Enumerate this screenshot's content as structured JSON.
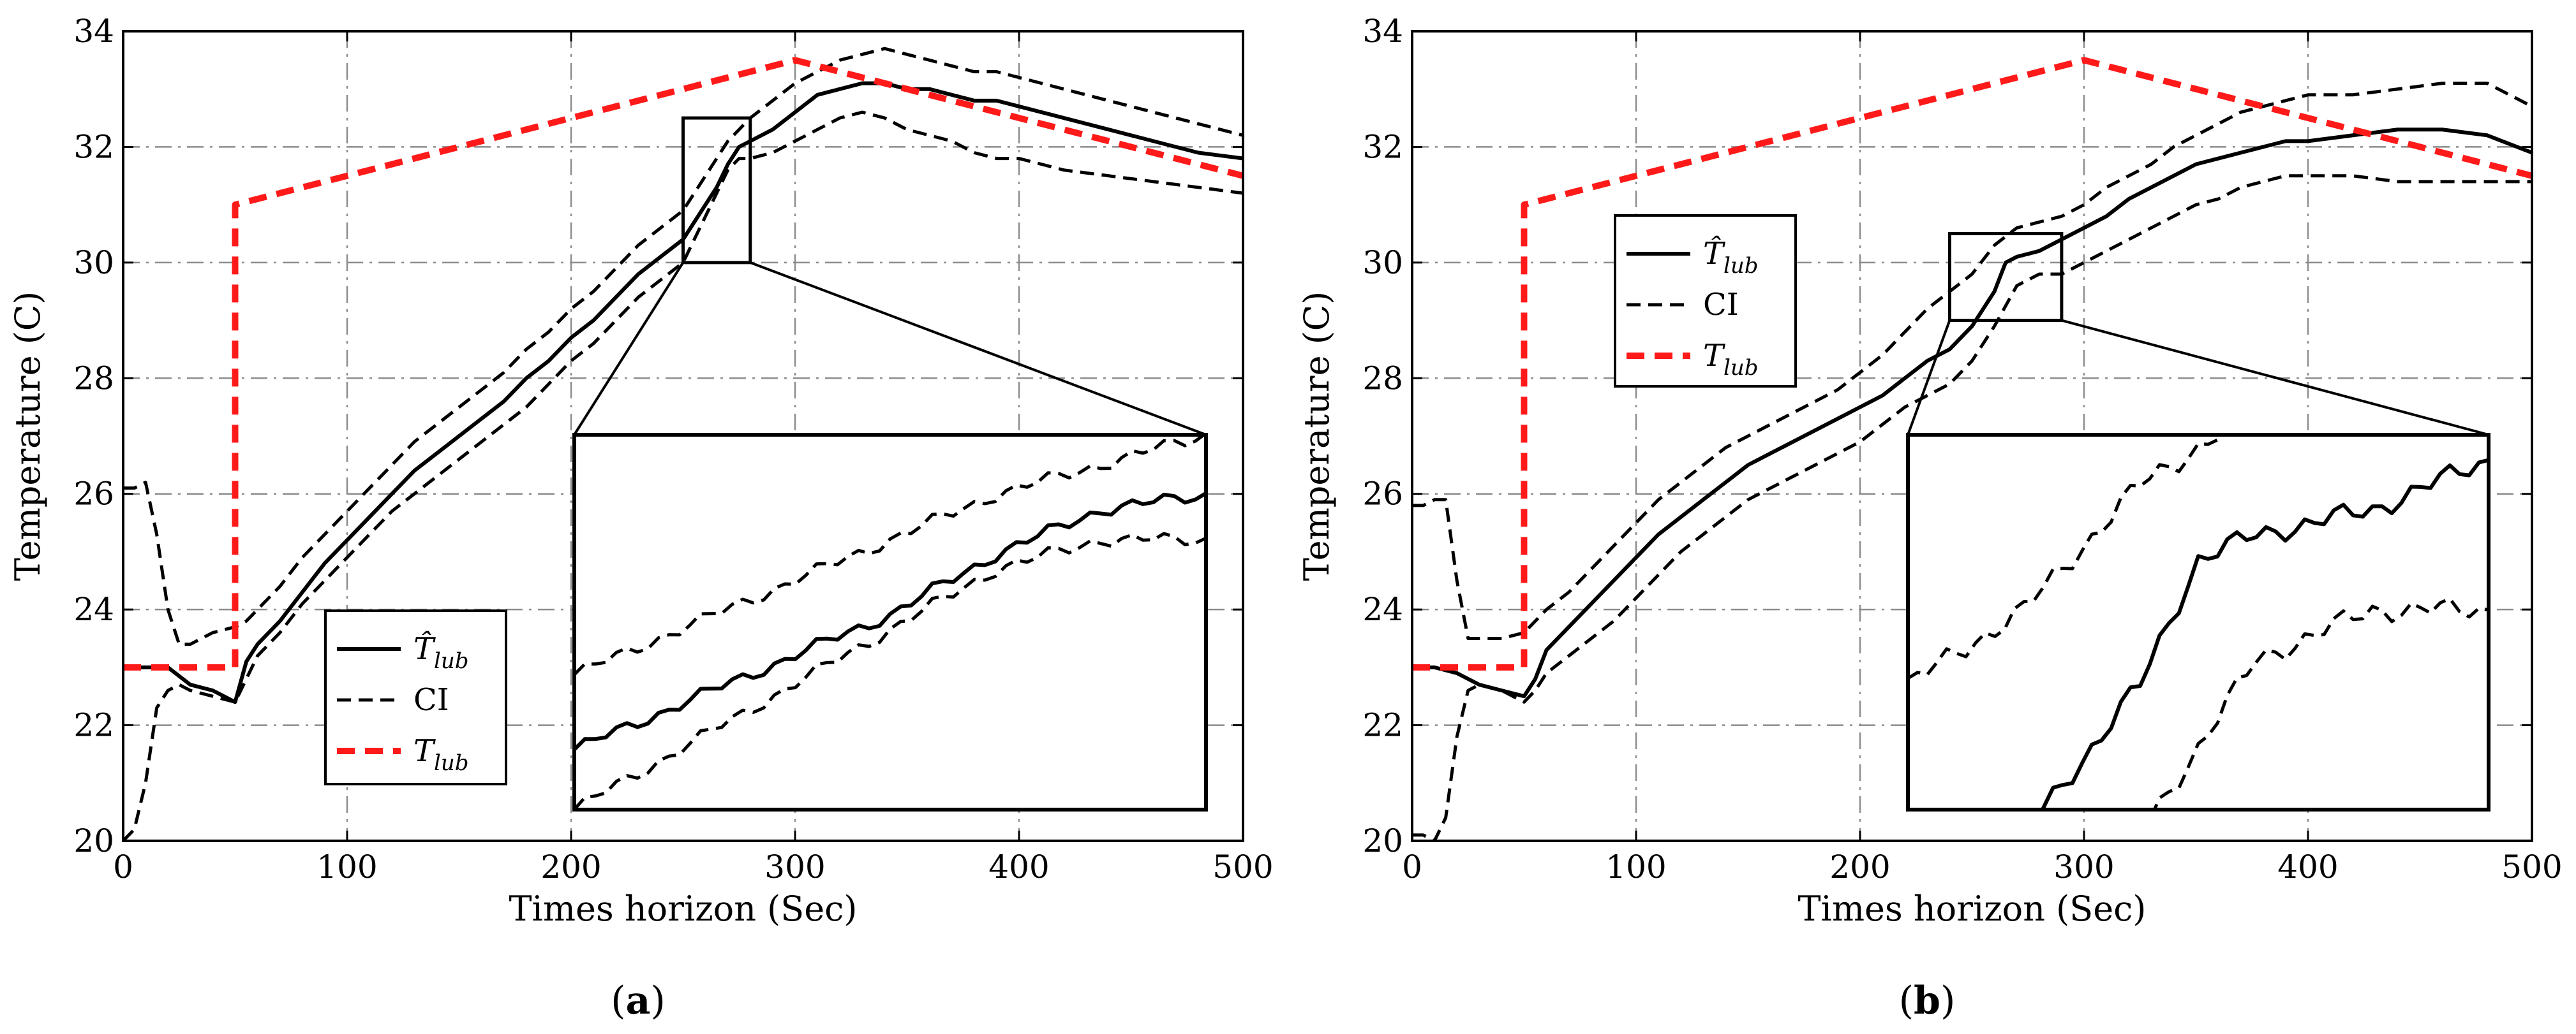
{
  "colors": {
    "estimate": "#000000",
    "ci": "#000000",
    "truth": "#ff1a1a",
    "grid": "#8c8c8c"
  },
  "chart_data": [
    {
      "panel": "(a)",
      "panel_parts": [
        "(",
        "a",
        ")"
      ],
      "type": "line",
      "xlabel": "Times horizon (Sec)",
      "ylabel": "Temperature (C)",
      "xlim": [
        0,
        500
      ],
      "ylim": [
        20,
        34
      ],
      "xticks": [
        0,
        100,
        200,
        300,
        400,
        500
      ],
      "yticks": [
        20,
        22,
        24,
        26,
        28,
        30,
        32,
        34
      ],
      "xtick_labels": [
        "0",
        "100",
        "200",
        "300",
        "400",
        "500"
      ],
      "ytick_labels": [
        "20",
        "22",
        "24",
        "26",
        "28",
        "30",
        "32",
        "34"
      ],
      "legend": {
        "placement": "lower-left",
        "entries": [
          {
            "series": "estimate",
            "label": "T̂",
            "sub": "lub",
            "style": "solid"
          },
          {
            "series": "ci",
            "label": "CI",
            "sub": "",
            "style": "dashed"
          },
          {
            "series": "truth",
            "label": "T",
            "sub": "lub",
            "style": "red-dashed"
          }
        ]
      },
      "zoom_window": {
        "x": [
          250,
          280
        ],
        "y": [
          30,
          32.5
        ]
      },
      "series": [
        {
          "name": "estimate",
          "x": [
            0,
            10,
            20,
            30,
            40,
            50,
            55,
            60,
            70,
            80,
            90,
            100,
            110,
            120,
            130,
            140,
            150,
            160,
            170,
            180,
            190,
            200,
            210,
            220,
            230,
            240,
            250,
            255,
            260,
            265,
            270,
            275,
            280,
            290,
            300,
            310,
            320,
            330,
            340,
            350,
            360,
            370,
            380,
            390,
            400,
            420,
            440,
            460,
            480,
            500
          ],
          "y": [
            23.0,
            23.0,
            23.0,
            22.7,
            22.6,
            22.4,
            23.1,
            23.4,
            23.8,
            24.3,
            24.8,
            25.2,
            25.6,
            26.0,
            26.4,
            26.7,
            27.0,
            27.3,
            27.6,
            28.0,
            28.3,
            28.7,
            29.0,
            29.4,
            29.8,
            30.1,
            30.4,
            30.7,
            31.0,
            31.3,
            31.7,
            32.0,
            32.1,
            32.3,
            32.6,
            32.9,
            33.0,
            33.1,
            33.1,
            33.0,
            33.0,
            32.9,
            32.8,
            32.8,
            32.7,
            32.5,
            32.3,
            32.1,
            31.9,
            31.8
          ]
        },
        {
          "name": "ci-upper",
          "x": [
            0,
            5,
            10,
            15,
            20,
            25,
            30,
            40,
            50,
            55,
            60,
            70,
            80,
            90,
            100,
            110,
            120,
            130,
            140,
            150,
            160,
            170,
            180,
            190,
            200,
            210,
            220,
            230,
            240,
            250,
            255,
            260,
            265,
            270,
            275,
            280,
            290,
            300,
            310,
            320,
            330,
            340,
            350,
            360,
            370,
            380,
            390,
            400,
            420,
            440,
            460,
            480,
            500
          ],
          "y": [
            26.1,
            26.1,
            26.2,
            25.3,
            24.0,
            23.4,
            23.4,
            23.6,
            23.7,
            23.8,
            24.0,
            24.4,
            24.9,
            25.3,
            25.7,
            26.1,
            26.5,
            26.9,
            27.2,
            27.5,
            27.8,
            28.1,
            28.5,
            28.8,
            29.2,
            29.5,
            29.9,
            30.3,
            30.6,
            30.9,
            31.2,
            31.5,
            31.8,
            32.1,
            32.3,
            32.5,
            32.8,
            33.1,
            33.3,
            33.5,
            33.6,
            33.7,
            33.6,
            33.5,
            33.4,
            33.3,
            33.3,
            33.2,
            33.0,
            32.8,
            32.6,
            32.4,
            32.2
          ]
        },
        {
          "name": "ci-lower",
          "x": [
            0,
            5,
            10,
            15,
            20,
            25,
            30,
            40,
            50,
            55,
            60,
            70,
            80,
            90,
            100,
            110,
            120,
            130,
            140,
            150,
            160,
            170,
            180,
            190,
            200,
            210,
            220,
            230,
            240,
            250,
            255,
            260,
            265,
            270,
            275,
            280,
            290,
            300,
            310,
            320,
            330,
            340,
            350,
            360,
            370,
            380,
            390,
            400,
            420,
            440,
            460,
            480,
            500
          ],
          "y": [
            20.0,
            20.2,
            21.0,
            22.3,
            22.6,
            22.7,
            22.6,
            22.5,
            22.4,
            22.8,
            23.2,
            23.6,
            24.1,
            24.5,
            24.9,
            25.3,
            25.7,
            26.0,
            26.3,
            26.6,
            26.9,
            27.2,
            27.5,
            27.9,
            28.3,
            28.6,
            29.0,
            29.4,
            29.7,
            30.0,
            30.4,
            30.8,
            31.2,
            31.6,
            31.8,
            31.8,
            31.9,
            32.1,
            32.3,
            32.5,
            32.6,
            32.5,
            32.3,
            32.2,
            32.1,
            31.9,
            31.8,
            31.8,
            31.6,
            31.5,
            31.4,
            31.3,
            31.2
          ]
        },
        {
          "name": "truth",
          "x": [
            0,
            50,
            50,
            300,
            500
          ],
          "y": [
            23.0,
            23.0,
            31.0,
            33.5,
            31.5
          ]
        }
      ]
    },
    {
      "panel": "(b)",
      "panel_parts": [
        "(",
        "b",
        ")"
      ],
      "type": "line",
      "xlabel": "Times horizon (Sec)",
      "ylabel": "Temperature (C)",
      "xlim": [
        0,
        500
      ],
      "ylim": [
        20,
        34
      ],
      "xticks": [
        0,
        100,
        200,
        300,
        400,
        500
      ],
      "yticks": [
        20,
        22,
        24,
        26,
        28,
        30,
        32,
        34
      ],
      "xtick_labels": [
        "0",
        "100",
        "200",
        "300",
        "400",
        "500"
      ],
      "ytick_labels": [
        "20",
        "22",
        "24",
        "26",
        "28",
        "30",
        "32",
        "34"
      ],
      "legend": {
        "placement": "upper-left",
        "entries": [
          {
            "series": "estimate",
            "label": "T̂",
            "sub": "lub",
            "style": "solid"
          },
          {
            "series": "ci",
            "label": "CI",
            "sub": "",
            "style": "dashed"
          },
          {
            "series": "truth",
            "label": "T",
            "sub": "lub",
            "style": "red-dashed"
          }
        ]
      },
      "zoom_window": {
        "x": [
          240,
          290
        ],
        "y": [
          29,
          30.5
        ]
      },
      "series": [
        {
          "name": "estimate",
          "x": [
            0,
            10,
            20,
            30,
            40,
            50,
            55,
            60,
            70,
            80,
            90,
            100,
            110,
            120,
            130,
            140,
            150,
            160,
            170,
            180,
            190,
            200,
            210,
            220,
            230,
            240,
            250,
            260,
            265,
            270,
            280,
            290,
            300,
            310,
            320,
            330,
            340,
            350,
            360,
            370,
            380,
            390,
            400,
            420,
            440,
            460,
            480,
            500
          ],
          "y": [
            23.0,
            23.0,
            22.9,
            22.7,
            22.6,
            22.5,
            22.8,
            23.3,
            23.7,
            24.1,
            24.5,
            24.9,
            25.3,
            25.6,
            25.9,
            26.2,
            26.5,
            26.7,
            26.9,
            27.1,
            27.3,
            27.5,
            27.7,
            28.0,
            28.3,
            28.5,
            28.9,
            29.5,
            30.0,
            30.1,
            30.2,
            30.4,
            30.6,
            30.8,
            31.1,
            31.3,
            31.5,
            31.7,
            31.8,
            31.9,
            32.0,
            32.1,
            32.1,
            32.2,
            32.3,
            32.3,
            32.2,
            31.9
          ]
        },
        {
          "name": "ci-upper",
          "x": [
            0,
            5,
            10,
            15,
            20,
            25,
            30,
            40,
            50,
            55,
            60,
            70,
            80,
            90,
            100,
            110,
            120,
            130,
            140,
            150,
            160,
            170,
            180,
            190,
            200,
            210,
            220,
            230,
            240,
            250,
            260,
            270,
            280,
            290,
            300,
            310,
            320,
            330,
            340,
            350,
            360,
            370,
            380,
            390,
            400,
            420,
            440,
            460,
            480,
            500
          ],
          "y": [
            25.8,
            25.8,
            25.9,
            25.9,
            24.5,
            23.5,
            23.5,
            23.5,
            23.6,
            23.8,
            24.0,
            24.3,
            24.7,
            25.1,
            25.5,
            25.9,
            26.2,
            26.5,
            26.8,
            27.0,
            27.2,
            27.4,
            27.6,
            27.8,
            28.1,
            28.4,
            28.8,
            29.2,
            29.5,
            29.8,
            30.3,
            30.6,
            30.7,
            30.8,
            31.0,
            31.3,
            31.5,
            31.7,
            32.0,
            32.2,
            32.4,
            32.6,
            32.7,
            32.8,
            32.9,
            32.9,
            33.0,
            33.1,
            33.1,
            32.7
          ]
        },
        {
          "name": "ci-lower",
          "x": [
            0,
            5,
            10,
            15,
            20,
            25,
            30,
            40,
            50,
            55,
            60,
            70,
            80,
            90,
            100,
            110,
            120,
            130,
            140,
            150,
            160,
            170,
            180,
            190,
            200,
            210,
            220,
            230,
            240,
            250,
            260,
            270,
            280,
            290,
            300,
            310,
            320,
            330,
            340,
            350,
            360,
            370,
            380,
            390,
            400,
            420,
            440,
            460,
            480,
            500
          ],
          "y": [
            20.1,
            20.1,
            20.0,
            20.4,
            21.8,
            22.6,
            22.7,
            22.6,
            22.4,
            22.6,
            22.9,
            23.2,
            23.5,
            23.8,
            24.2,
            24.6,
            25.0,
            25.3,
            25.6,
            25.9,
            26.1,
            26.3,
            26.5,
            26.7,
            26.9,
            27.2,
            27.5,
            27.7,
            27.9,
            28.3,
            28.9,
            29.6,
            29.8,
            29.8,
            30.0,
            30.2,
            30.4,
            30.6,
            30.8,
            31.0,
            31.1,
            31.3,
            31.4,
            31.5,
            31.5,
            31.5,
            31.4,
            31.4,
            31.4,
            31.4
          ]
        },
        {
          "name": "truth",
          "x": [
            0,
            50,
            50,
            300,
            500
          ],
          "y": [
            23.0,
            23.0,
            31.0,
            33.5,
            31.5
          ]
        }
      ]
    }
  ]
}
